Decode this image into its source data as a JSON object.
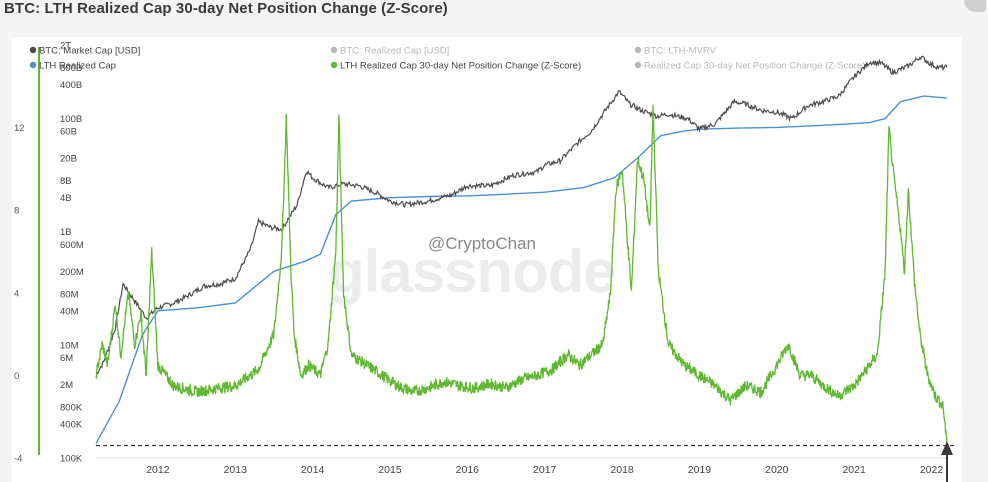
{
  "page": {
    "title": "BTC: LTH Realized Cap 30-day Net Position Change (Z-Score)"
  },
  "watermark": {
    "brand": "glassnode",
    "handle": "@CryptoChan"
  },
  "colors": {
    "market_cap": "#4d4d4d",
    "lth_realized_cap": "#4a8fd8",
    "zscore": "#5fb830",
    "hidden_series": "#b5b5b5",
    "baseline": "#333333"
  },
  "annotation": {
    "icon": "arrow-up-icon"
  },
  "chart_data": {
    "type": "line",
    "title": "BTC: LTH Realized Cap 30-day Net Position Change (Z-Score)",
    "legend": [
      {
        "label": "BTC: Market Cap [USD]",
        "color": "#4d4d4d",
        "visible": true
      },
      {
        "label": "BTC: Realized Cap [USD]",
        "color": "#b5b5b5",
        "visible": false
      },
      {
        "label": "BTC: LTH-MVRV",
        "color": "#b5b5b5",
        "visible": false
      },
      {
        "label": "LTH Realized Cap",
        "color": "#4a8fd8",
        "visible": true
      },
      {
        "label": "LTH Realized Cap 30-day Net Position Change (Z-Score)",
        "color": "#5fb830",
        "visible": true
      },
      {
        "label": "Realized Cap 30-day Net Position Change (Z-Score)",
        "color": "#b5b5b5",
        "visible": false
      }
    ],
    "x_axis": {
      "ticks": [
        "2012",
        "2013",
        "2014",
        "2015",
        "2016",
        "2017",
        "2018",
        "2019",
        "2020",
        "2021",
        "2022"
      ],
      "range": [
        2011.2,
        2022.2
      ]
    },
    "left_axis": {
      "ticks": [
        "12",
        "8",
        "4",
        "0",
        "-4"
      ],
      "range": [
        -4,
        16
      ],
      "series": "LTH Realized Cap 30-day Net Position Change (Z-Score)"
    },
    "log_axis": {
      "ticks": [
        "2T",
        "800B",
        "400B",
        "100B",
        "60B",
        "20B",
        "8B",
        "4B",
        "1B",
        "600M",
        "200M",
        "80M",
        "40M",
        "10M",
        "6M",
        "2M",
        "800K",
        "400K",
        "100K"
      ],
      "scale": "log",
      "range": [
        100000,
        2000000000000
      ],
      "series": [
        "BTC: Market Cap [USD]",
        "LTH Realized Cap"
      ]
    },
    "baseline": {
      "value": -3.4,
      "style": "dashed"
    },
    "series": [
      {
        "name": "BTC: Market Cap [USD]",
        "axis": "log",
        "x": [
          2011.2,
          2011.3,
          2011.45,
          2011.55,
          2011.7,
          2011.85,
          2012.0,
          2012.2,
          2012.4,
          2012.6,
          2012.8,
          2013.0,
          2013.2,
          2013.3,
          2013.45,
          2013.6,
          2013.8,
          2013.92,
          2014.0,
          2014.2,
          2014.4,
          2014.6,
          2014.8,
          2015.0,
          2015.2,
          2015.5,
          2015.8,
          2016.0,
          2016.3,
          2016.6,
          2016.9,
          2017.0,
          2017.2,
          2017.45,
          2017.6,
          2017.8,
          2017.96,
          2018.1,
          2018.25,
          2018.45,
          2018.6,
          2018.85,
          2019.0,
          2019.2,
          2019.45,
          2019.6,
          2019.8,
          2020.0,
          2020.2,
          2020.4,
          2020.6,
          2020.8,
          2021.0,
          2021.2,
          2021.35,
          2021.5,
          2021.7,
          2021.86,
          2022.0,
          2022.1,
          2022.2
        ],
        "values": [
          3000000,
          5000000,
          20000000,
          120000000,
          60000000,
          30000000,
          45000000,
          55000000,
          75000000,
          110000000,
          120000000,
          150000000,
          500000000,
          1500000000,
          1200000000,
          1100000000,
          3000000000,
          12000000000,
          9000000000,
          6000000000,
          7000000000,
          6500000000,
          5000000000,
          3500000000,
          3000000000,
          3500000000,
          4500000000,
          6500000000,
          6500000000,
          10000000000,
          11500000000,
          15000000000,
          18000000000,
          40000000000,
          60000000000,
          150000000000,
          300000000000,
          180000000000,
          140000000000,
          110000000000,
          120000000000,
          100000000000,
          65000000000,
          80000000000,
          200000000000,
          180000000000,
          140000000000,
          130000000000,
          100000000000,
          170000000000,
          200000000000,
          250000000000,
          550000000000,
          1000000000000,
          950000000000,
          650000000000,
          850000000000,
          1250000000000,
          900000000000,
          800000000000,
          800000000000
        ]
      },
      {
        "name": "LTH Realized Cap",
        "axis": "log",
        "x": [
          2011.2,
          2011.5,
          2011.8,
          2012.0,
          2012.5,
          2013.0,
          2013.5,
          2013.9,
          2014.1,
          2014.3,
          2014.5,
          2015.0,
          2015.5,
          2016.0,
          2016.5,
          2017.0,
          2017.5,
          2017.9,
          2018.2,
          2018.5,
          2018.8,
          2019.0,
          2019.5,
          2020.0,
          2020.5,
          2020.9,
          2021.2,
          2021.4,
          2021.6,
          2021.9,
          2022.2
        ],
        "values": [
          180000,
          1000000,
          15000000,
          40000000,
          45000000,
          55000000,
          200000000,
          300000000,
          400000000,
          2000000000,
          3500000000,
          4000000000,
          4200000000,
          4300000000,
          4600000000,
          5000000000,
          6000000000,
          9000000000,
          20000000000,
          50000000000,
          60000000000,
          65000000000,
          68000000000,
          70000000000,
          75000000000,
          80000000000,
          85000000000,
          100000000000,
          200000000000,
          250000000000,
          230000000000
        ]
      },
      {
        "name": "LTH Realized Cap 30-day Net Position Change (Z-Score)",
        "axis": "left",
        "x": [
          2011.2,
          2011.28,
          2011.35,
          2011.45,
          2011.52,
          2011.62,
          2011.7,
          2011.78,
          2011.85,
          2011.92,
          2012.0,
          2012.2,
          2012.5,
          2012.8,
          2013.0,
          2013.3,
          2013.5,
          2013.6,
          2013.66,
          2013.72,
          2013.76,
          2013.85,
          2013.95,
          2014.1,
          2014.2,
          2014.3,
          2014.34,
          2014.4,
          2014.5,
          2014.7,
          2014.9,
          2015.1,
          2015.3,
          2015.5,
          2015.7,
          2015.9,
          2016.1,
          2016.3,
          2016.5,
          2016.7,
          2016.9,
          2017.1,
          2017.3,
          2017.45,
          2017.6,
          2017.75,
          2017.85,
          2017.92,
          2018.0,
          2018.05,
          2018.12,
          2018.2,
          2018.28,
          2018.36,
          2018.4,
          2018.47,
          2018.6,
          2018.8,
          2019.0,
          2019.2,
          2019.4,
          2019.6,
          2019.8,
          2020.0,
          2020.15,
          2020.3,
          2020.45,
          2020.6,
          2020.8,
          2021.0,
          2021.2,
          2021.3,
          2021.4,
          2021.45,
          2021.5,
          2021.6,
          2021.65,
          2021.7,
          2021.78,
          2021.85,
          2021.95,
          2022.05,
          2022.15,
          2022.2
        ],
        "values": [
          0,
          1.5,
          0.5,
          3.5,
          1,
          4,
          1.5,
          3,
          0,
          6,
          0.5,
          -0.5,
          -0.8,
          -0.6,
          -0.5,
          0.3,
          2,
          6,
          12.5,
          5,
          2,
          0,
          0.5,
          0,
          1.5,
          6,
          12.5,
          4,
          1,
          0.5,
          0,
          -0.5,
          -0.8,
          -0.6,
          -0.3,
          -0.5,
          -0.6,
          -0.4,
          -0.6,
          -0.2,
          0,
          0.3,
          1,
          0.5,
          1,
          1.5,
          4,
          9,
          10,
          7.5,
          4,
          10.5,
          9.5,
          7,
          13,
          5,
          1.5,
          0.5,
          0,
          -0.5,
          -1.2,
          -0.5,
          -0.8,
          0.5,
          1.5,
          0,
          0,
          -0.5,
          -1,
          -0.5,
          0.5,
          1,
          5,
          12,
          10,
          7,
          5,
          9,
          4.5,
          2,
          0,
          -1,
          -1.5,
          -3.4
        ]
      }
    ]
  }
}
